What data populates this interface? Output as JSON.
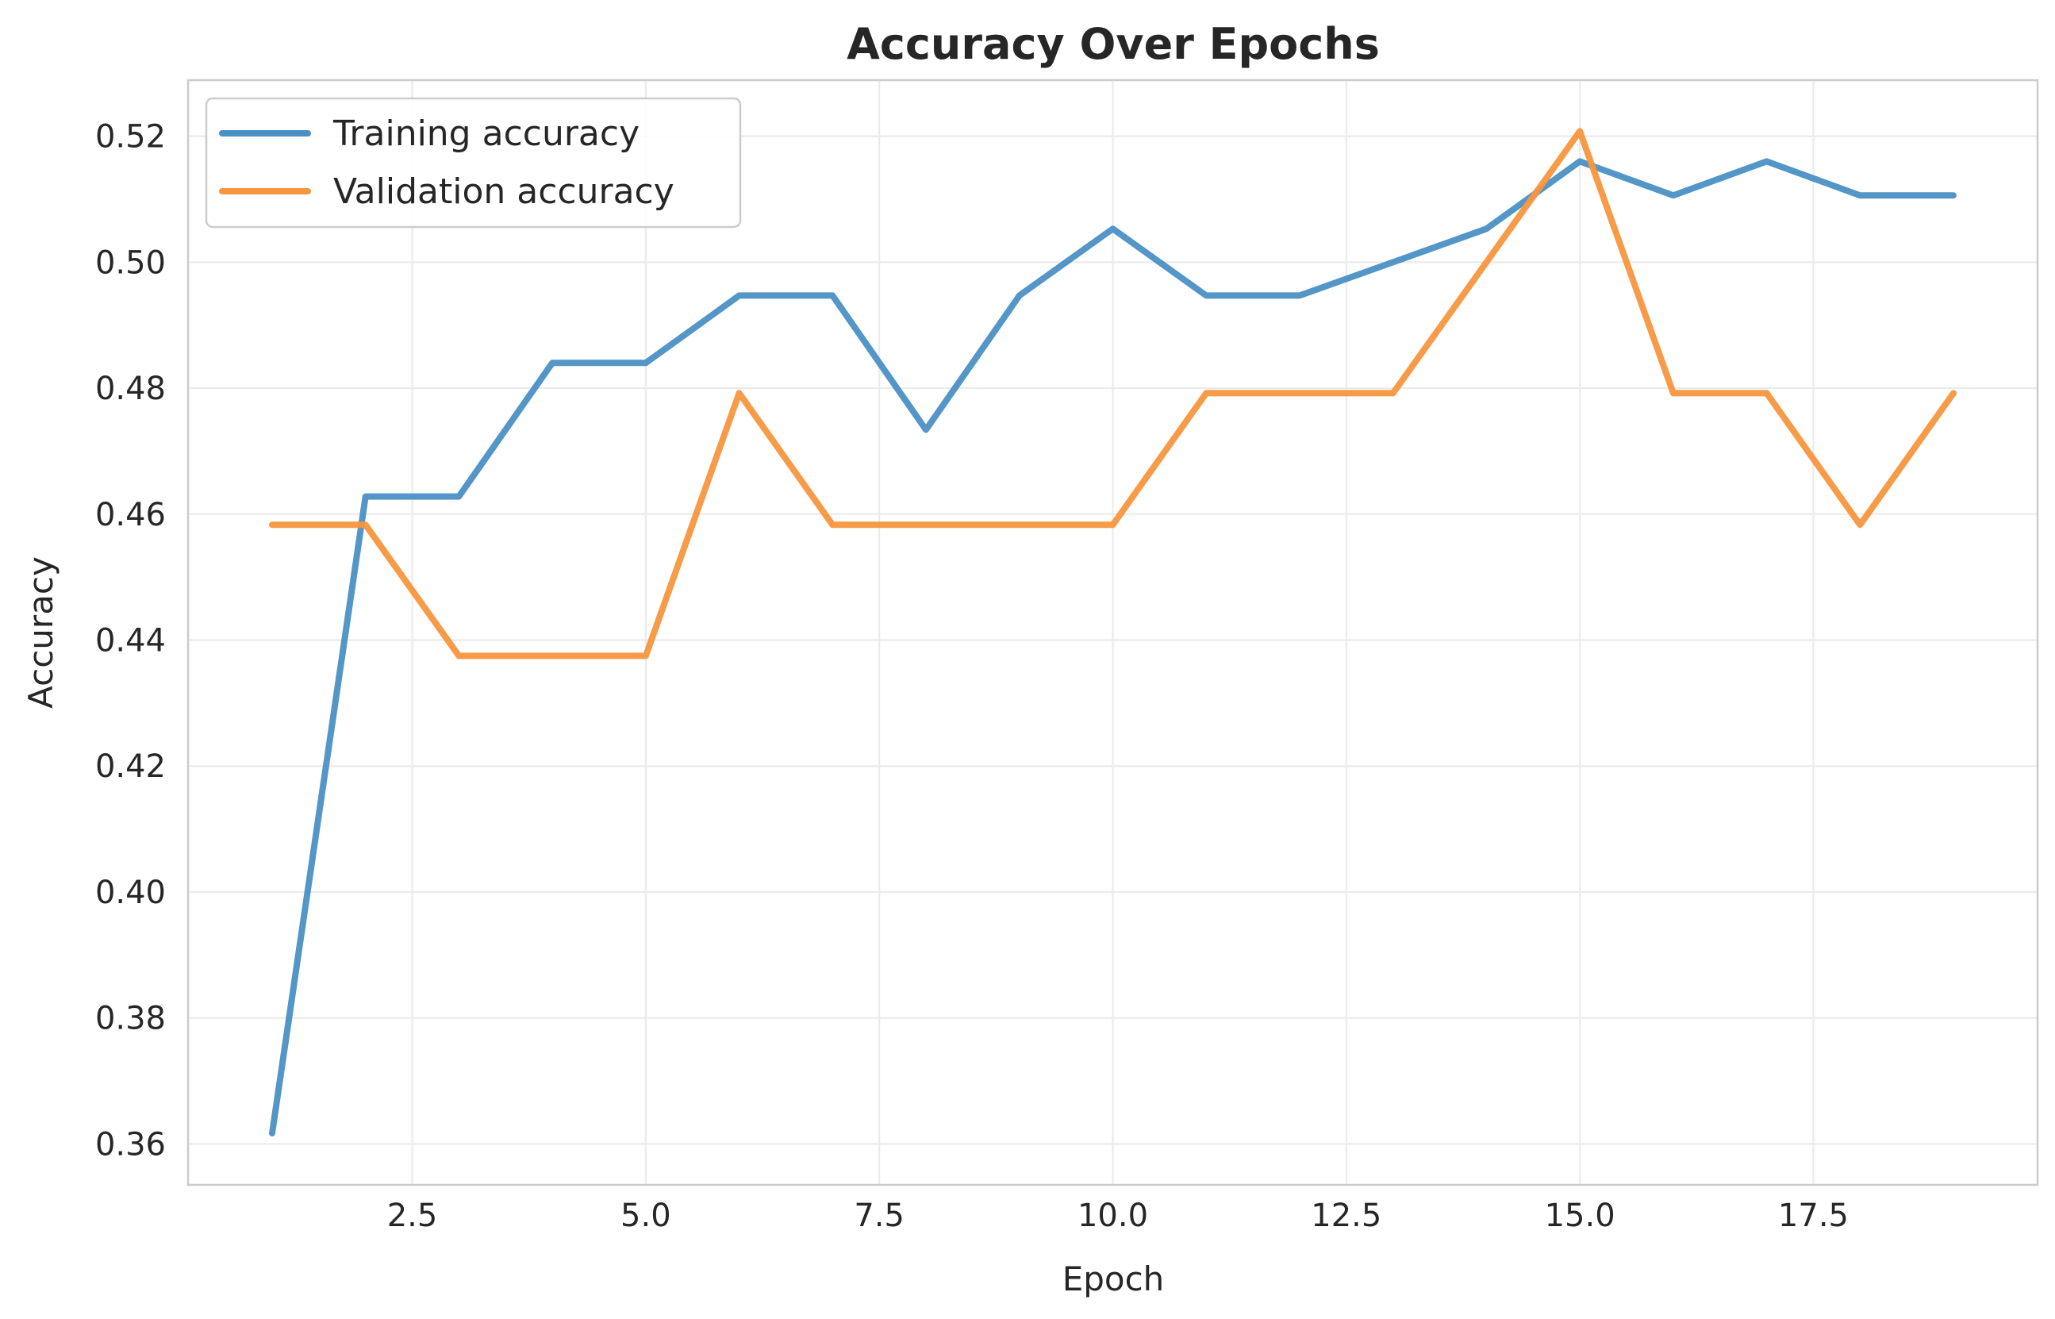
{
  "chart_data": {
    "type": "line",
    "title": "Accuracy Over Epochs",
    "xlabel": "Epoch",
    "ylabel": "Accuracy",
    "xlim": [
      0.1,
      19.9
    ],
    "ylim": [
      0.3535,
      0.5289
    ],
    "xticks": [
      2.5,
      5.0,
      7.5,
      10.0,
      12.5,
      15.0,
      17.5
    ],
    "xtick_labels": [
      "2.5",
      "5.0",
      "7.5",
      "10.0",
      "12.5",
      "15.0",
      "17.5"
    ],
    "yticks": [
      0.36,
      0.38,
      0.4,
      0.42,
      0.44,
      0.46,
      0.48,
      0.5,
      0.52
    ],
    "ytick_labels": [
      "0.36",
      "0.38",
      "0.40",
      "0.42",
      "0.44",
      "0.46",
      "0.48",
      "0.50",
      "0.52"
    ],
    "grid": true,
    "legend_position": "top-left",
    "x": [
      1,
      2,
      3,
      4,
      5,
      6,
      7,
      8,
      9,
      10,
      11,
      12,
      13,
      14,
      15,
      16,
      17,
      18,
      19
    ],
    "series": [
      {
        "name": "Training accuracy",
        "color": "#4a90c4",
        "values": [
          0.3617,
          0.4628,
          0.4628,
          0.484,
          0.484,
          0.4947,
          0.4947,
          0.4734,
          0.4947,
          0.5053,
          0.4947,
          0.4947,
          0.5,
          0.5053,
          0.516,
          0.5106,
          0.516,
          0.5106,
          0.5106
        ]
      },
      {
        "name": "Validation accuracy",
        "color": "#f7963e",
        "values": [
          0.4583,
          0.4583,
          0.4375,
          0.4375,
          0.4375,
          0.4792,
          0.4583,
          0.4583,
          0.4583,
          0.4583,
          0.4792,
          0.4792,
          0.4792,
          0.5,
          0.5208,
          0.4792,
          0.4792,
          0.4583,
          0.4792
        ]
      }
    ]
  }
}
